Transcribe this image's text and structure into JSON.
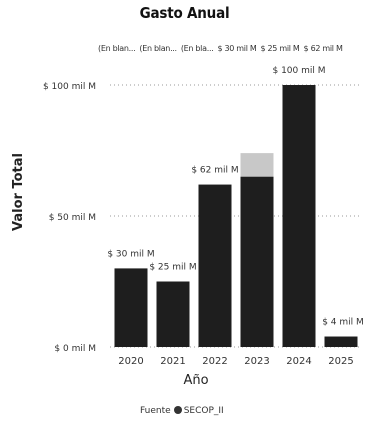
{
  "chart_data": {
    "type": "bar",
    "title": "Gasto Anual",
    "xlabel": "Año",
    "ylabel": "Valor Total",
    "categories": [
      "2020",
      "2021",
      "2022",
      "2023",
      "2024",
      "2025"
    ],
    "values": [
      30,
      25,
      62,
      65,
      100,
      4
    ],
    "data_labels": [
      "$ 30 mil M",
      "$ 25 mil M",
      "$ 62 mil M",
      "",
      "$ 100 mil M",
      "$ 4 mil M"
    ],
    "overlay_values": [
      null,
      null,
      null,
      74,
      null,
      null
    ],
    "yticks": [
      0,
      50,
      100
    ],
    "ytick_labels": [
      "$ 0 mil M",
      "$ 50 mil M",
      "$ 100 mil M"
    ],
    "ylim": [
      0,
      105
    ],
    "grid": "dotted horizontal",
    "legend": {
      "position": "top",
      "entries": [
        "(En blan...",
        "(En blan...",
        "(En bla...",
        "$ 30 mil M",
        "$ 25 mil M",
        "$ 62 mil M"
      ]
    },
    "bar_color": "#1e1e1e",
    "overlay_color": "#c8c8c8"
  },
  "footer": {
    "source_label": "Fuente",
    "source_name": "SECOP_II"
  }
}
